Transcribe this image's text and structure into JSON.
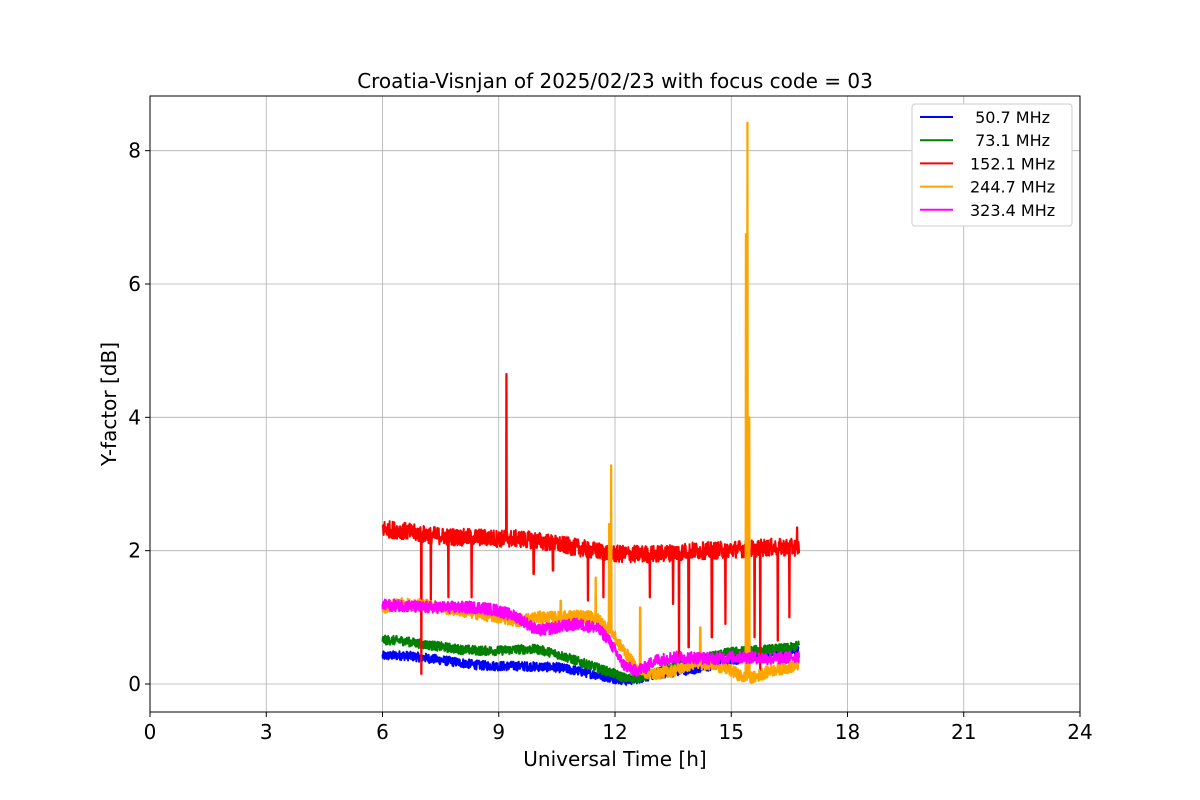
{
  "chart_data": {
    "type": "line",
    "title": "Croatia-Visnjan of 2025/02/23 with focus code = 03",
    "xlabel": "Universal Time [h]",
    "ylabel": "Y-factor [dB]",
    "xlim": [
      0,
      24
    ],
    "ylim": [
      -0.42,
      8.82
    ],
    "xticks": [
      0,
      3,
      6,
      9,
      12,
      15,
      18,
      21,
      24
    ],
    "yticks": [
      0,
      2,
      4,
      6,
      8
    ],
    "grid": true,
    "legend_position": "top-right",
    "series": [
      {
        "name": " 50.7 MHz",
        "color": "#0000ff",
        "x": [
          6.0,
          6.5,
          7.0,
          7.5,
          8.0,
          8.5,
          9.0,
          9.5,
          10.0,
          10.5,
          11.0,
          11.5,
          12.0,
          12.3,
          12.6,
          13.0,
          13.5,
          14.0,
          14.5,
          15.0,
          15.5,
          16.0,
          16.5,
          16.75
        ],
        "y": [
          0.42,
          0.43,
          0.4,
          0.36,
          0.32,
          0.28,
          0.27,
          0.27,
          0.26,
          0.25,
          0.2,
          0.14,
          0.08,
          0.05,
          0.08,
          0.14,
          0.18,
          0.22,
          0.27,
          0.35,
          0.42,
          0.45,
          0.47,
          0.5
        ],
        "noise": 0.07,
        "spikes": []
      },
      {
        "name": " 73.1 MHz",
        "color": "#008000",
        "x": [
          6.0,
          6.5,
          7.0,
          7.5,
          8.0,
          8.5,
          9.0,
          9.5,
          10.0,
          10.5,
          11.0,
          11.5,
          12.0,
          12.3,
          12.6,
          13.0,
          13.5,
          14.0,
          14.5,
          15.0,
          15.5,
          16.0,
          16.5,
          16.75
        ],
        "y": [
          0.66,
          0.65,
          0.6,
          0.56,
          0.52,
          0.5,
          0.5,
          0.52,
          0.52,
          0.45,
          0.35,
          0.25,
          0.15,
          0.08,
          0.1,
          0.15,
          0.25,
          0.35,
          0.42,
          0.48,
          0.5,
          0.52,
          0.54,
          0.58
        ],
        "noise": 0.07,
        "spikes": []
      },
      {
        "name": "152.1 MHz",
        "color": "#ff0000",
        "x": [
          6.0,
          6.5,
          7.0,
          7.5,
          8.0,
          8.5,
          9.0,
          9.5,
          10.0,
          10.5,
          11.0,
          11.5,
          12.0,
          12.5,
          13.0,
          13.5,
          14.0,
          14.5,
          15.0,
          15.5,
          16.0,
          16.5,
          16.75
        ],
        "y": [
          2.33,
          2.3,
          2.25,
          2.22,
          2.2,
          2.2,
          2.18,
          2.18,
          2.15,
          2.1,
          2.05,
          2.0,
          1.95,
          1.95,
          1.95,
          1.97,
          2.0,
          2.0,
          2.02,
          2.03,
          2.05,
          2.05,
          2.05
        ],
        "noise": 0.13,
        "spikes": [
          {
            "x": 9.2,
            "y": 4.65
          },
          {
            "x": 7.0,
            "y": 0.15
          },
          {
            "x": 7.25,
            "y": 1.25
          },
          {
            "x": 7.7,
            "y": 1.3
          },
          {
            "x": 8.3,
            "y": 1.3
          },
          {
            "x": 9.9,
            "y": 1.65
          },
          {
            "x": 10.4,
            "y": 1.7
          },
          {
            "x": 11.3,
            "y": 1.25
          },
          {
            "x": 11.7,
            "y": 1.3
          },
          {
            "x": 12.9,
            "y": 1.3
          },
          {
            "x": 13.5,
            "y": 1.2
          },
          {
            "x": 13.65,
            "y": 0.4
          },
          {
            "x": 13.9,
            "y": 0.55
          },
          {
            "x": 14.5,
            "y": 0.7
          },
          {
            "x": 14.85,
            "y": 0.9
          },
          {
            "x": 15.6,
            "y": 0.7
          },
          {
            "x": 15.75,
            "y": 0.2
          },
          {
            "x": 16.2,
            "y": 0.65
          },
          {
            "x": 16.5,
            "y": 1.0
          },
          {
            "x": 16.7,
            "y": 2.35
          }
        ]
      },
      {
        "name": "244.7 MHz",
        "color": "#ffa500",
        "x": [
          6.0,
          6.5,
          7.0,
          7.5,
          8.0,
          8.5,
          9.0,
          9.5,
          10.0,
          10.5,
          11.0,
          11.5,
          11.9,
          12.1,
          12.3,
          12.6,
          13.0,
          13.5,
          14.0,
          14.5,
          15.0,
          15.3,
          15.6,
          16.0,
          16.5,
          16.75
        ],
        "y": [
          1.15,
          1.2,
          1.2,
          1.15,
          1.1,
          1.05,
          1.0,
          0.95,
          1.0,
          1.0,
          1.02,
          1.0,
          0.8,
          0.6,
          0.45,
          0.2,
          0.15,
          0.2,
          0.3,
          0.3,
          0.2,
          0.1,
          0.1,
          0.2,
          0.25,
          0.3
        ],
        "noise": 0.09,
        "spikes": [
          {
            "x": 15.42,
            "y": 8.42
          },
          {
            "x": 15.38,
            "y": 6.75
          },
          {
            "x": 15.46,
            "y": 4.0
          },
          {
            "x": 11.9,
            "y": 3.28
          },
          {
            "x": 11.85,
            "y": 2.4
          },
          {
            "x": 11.5,
            "y": 1.6
          },
          {
            "x": 12.65,
            "y": 1.15
          },
          {
            "x": 14.2,
            "y": 0.85
          },
          {
            "x": 10.6,
            "y": 1.25
          }
        ]
      },
      {
        "name": "323.4 MHz",
        "color": "#ff00ff",
        "x": [
          6.0,
          6.5,
          7.0,
          7.5,
          8.0,
          8.5,
          9.0,
          9.5,
          10.0,
          10.5,
          11.0,
          11.5,
          11.8,
          12.0,
          12.2,
          12.5,
          12.8,
          13.0,
          13.5,
          14.0,
          14.5,
          15.0,
          15.5,
          16.0,
          16.5,
          16.75
        ],
        "y": [
          1.18,
          1.18,
          1.15,
          1.15,
          1.15,
          1.15,
          1.1,
          1.0,
          0.8,
          0.85,
          0.9,
          0.85,
          0.7,
          0.5,
          0.3,
          0.2,
          0.25,
          0.35,
          0.4,
          0.4,
          0.38,
          0.4,
          0.4,
          0.38,
          0.4,
          0.42
        ],
        "noise": 0.09,
        "spikes": []
      }
    ]
  }
}
